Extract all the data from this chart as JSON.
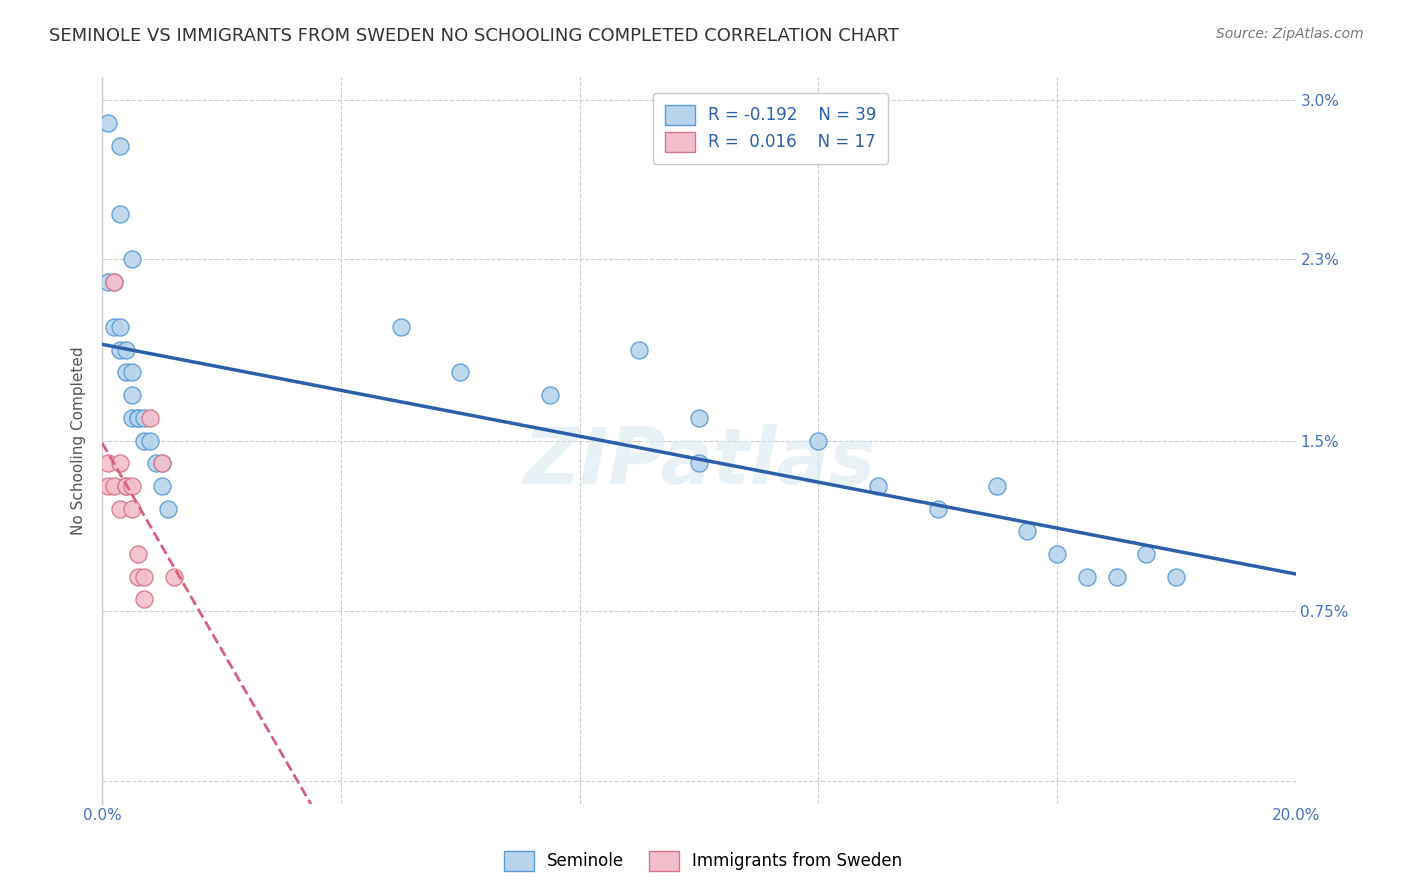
{
  "title": "SEMINOLE VS IMMIGRANTS FROM SWEDEN NO SCHOOLING COMPLETED CORRELATION CHART",
  "source": "Source: ZipAtlas.com",
  "xmin": 0.0,
  "xmax": 0.2,
  "ymin": -0.001,
  "ymax": 0.031,
  "seminole_x": [
    0.001,
    0.003,
    0.003,
    0.005,
    0.001,
    0.002,
    0.002,
    0.003,
    0.003,
    0.004,
    0.004,
    0.005,
    0.005,
    0.005,
    0.006,
    0.006,
    0.007,
    0.007,
    0.008,
    0.009,
    0.01,
    0.01,
    0.011,
    0.05,
    0.06,
    0.075,
    0.09,
    0.1,
    0.1,
    0.12,
    0.13,
    0.14,
    0.15,
    0.155,
    0.16,
    0.165,
    0.17,
    0.175,
    0.18
  ],
  "seminole_y": [
    0.029,
    0.028,
    0.025,
    0.023,
    0.022,
    0.022,
    0.02,
    0.02,
    0.019,
    0.019,
    0.018,
    0.018,
    0.017,
    0.016,
    0.016,
    0.016,
    0.016,
    0.015,
    0.015,
    0.014,
    0.014,
    0.013,
    0.012,
    0.02,
    0.018,
    0.017,
    0.019,
    0.016,
    0.014,
    0.015,
    0.013,
    0.012,
    0.013,
    0.011,
    0.01,
    0.009,
    0.009,
    0.01,
    0.009
  ],
  "sweden_x": [
    0.001,
    0.001,
    0.002,
    0.002,
    0.003,
    0.003,
    0.004,
    0.004,
    0.005,
    0.005,
    0.006,
    0.006,
    0.007,
    0.007,
    0.008,
    0.01,
    0.012
  ],
  "sweden_y": [
    0.014,
    0.013,
    0.022,
    0.013,
    0.014,
    0.012,
    0.013,
    0.013,
    0.013,
    0.012,
    0.01,
    0.009,
    0.009,
    0.008,
    0.016,
    0.014,
    0.009
  ],
  "seminole_color": "#b8d4ec",
  "seminole_edge": "#5b9bd5",
  "sweden_color": "#f4bfcc",
  "sweden_edge": "#d9748a",
  "line_blue": "#2b5faa",
  "line_pink": "#d95f7e",
  "watermark": "ZIPatlas",
  "legend_label1": "Seminole",
  "legend_label2": "Immigrants from Sweden"
}
